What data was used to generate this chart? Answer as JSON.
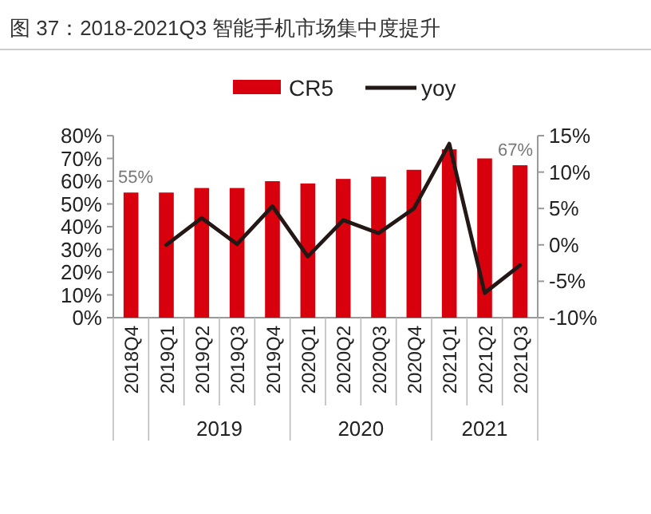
{
  "chart_data": {
    "type": "bar",
    "title": "图 37：2018-2021Q3 智能手机市场集中度提升",
    "categories": [
      "2018Q4",
      "2019Q1",
      "2019Q2",
      "2019Q3",
      "2019Q4",
      "2020Q1",
      "2020Q2",
      "2020Q3",
      "2020Q4",
      "2021Q1",
      "2021Q2",
      "2021Q3"
    ],
    "series": [
      {
        "name": "CR5",
        "color": "#d9000d",
        "values": [
          55,
          55,
          57,
          57,
          60,
          59,
          61,
          62,
          65,
          74,
          70,
          67
        ],
        "value_labels": [
          "55%",
          null,
          null,
          null,
          null,
          null,
          null,
          null,
          null,
          null,
          null,
          "67%"
        ]
      },
      {
        "name": "yoy",
        "type": "line",
        "axis": "y2",
        "color": "#231815",
        "values": [
          null,
          0,
          3.7,
          0.1,
          5.3,
          -1.6,
          3.4,
          1.6,
          5.0,
          13.9,
          -6.6,
          -2.8
        ]
      }
    ],
    "ylim": [
      0,
      80
    ],
    "yticks": [
      {
        "value": 0,
        "label": "0%"
      },
      {
        "value": 10,
        "label": "10%"
      },
      {
        "value": 20,
        "label": "20%"
      },
      {
        "value": 30,
        "label": "30%"
      },
      {
        "value": 40,
        "label": "40%"
      },
      {
        "value": 50,
        "label": "50%"
      },
      {
        "value": 60,
        "label": "60%"
      },
      {
        "value": 70,
        "label": "70%"
      },
      {
        "value": 80,
        "label": "80%"
      }
    ],
    "y2lim": [
      -10,
      15
    ],
    "y2ticks": [
      {
        "value": -10,
        "label": "-10%"
      },
      {
        "value": -5,
        "label": "-5%"
      },
      {
        "value": 0,
        "label": "0%"
      },
      {
        "value": 5,
        "label": "5%"
      },
      {
        "value": 10,
        "label": "10%"
      },
      {
        "value": 15,
        "label": "15%"
      }
    ],
    "legend": "top",
    "annotations": [
      "2019",
      "2020",
      "2021"
    ]
  }
}
